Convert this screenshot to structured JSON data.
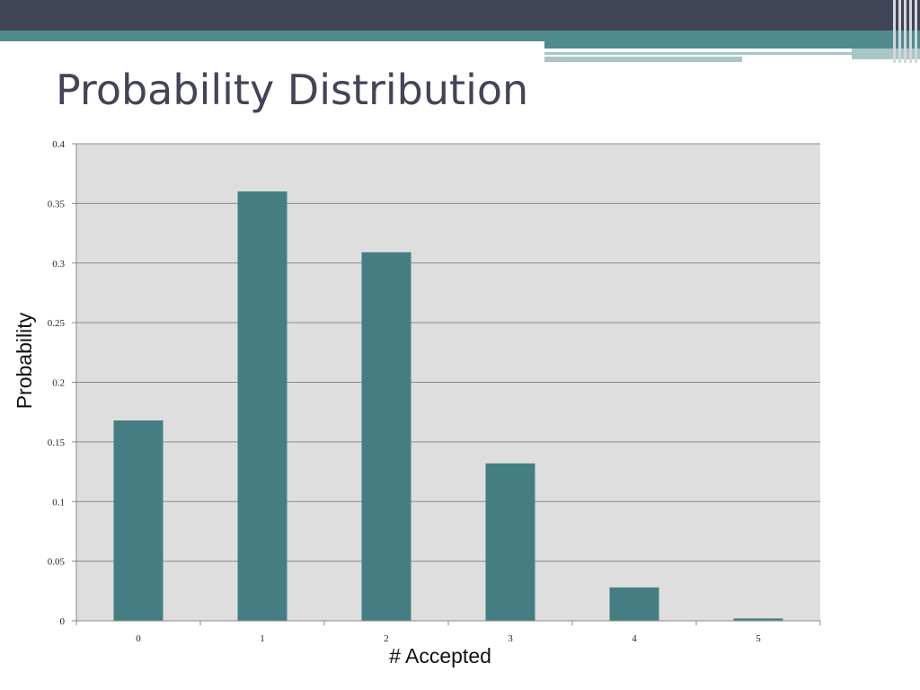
{
  "slide": {
    "title": "Probability Distribution",
    "accent_dark": "#424457",
    "accent_teal": "#4f8b8d",
    "accent_light": "#a9c6c7"
  },
  "chart_data": {
    "type": "bar",
    "categories": [
      "0",
      "1",
      "2",
      "3",
      "4",
      "5"
    ],
    "values": [
      0.168,
      0.36,
      0.309,
      0.132,
      0.028,
      0.002
    ],
    "xlabel": "#  Accepted",
    "ylabel": "Probability",
    "ylim": [
      0,
      0.4
    ],
    "yticks": [
      "0",
      "0.05",
      "0.1",
      "0.15",
      "0.2",
      "0.25",
      "0.3",
      "0.35",
      "0.4"
    ],
    "grid": true,
    "bar_color": "#447e82",
    "plot_background": "#dedede"
  }
}
